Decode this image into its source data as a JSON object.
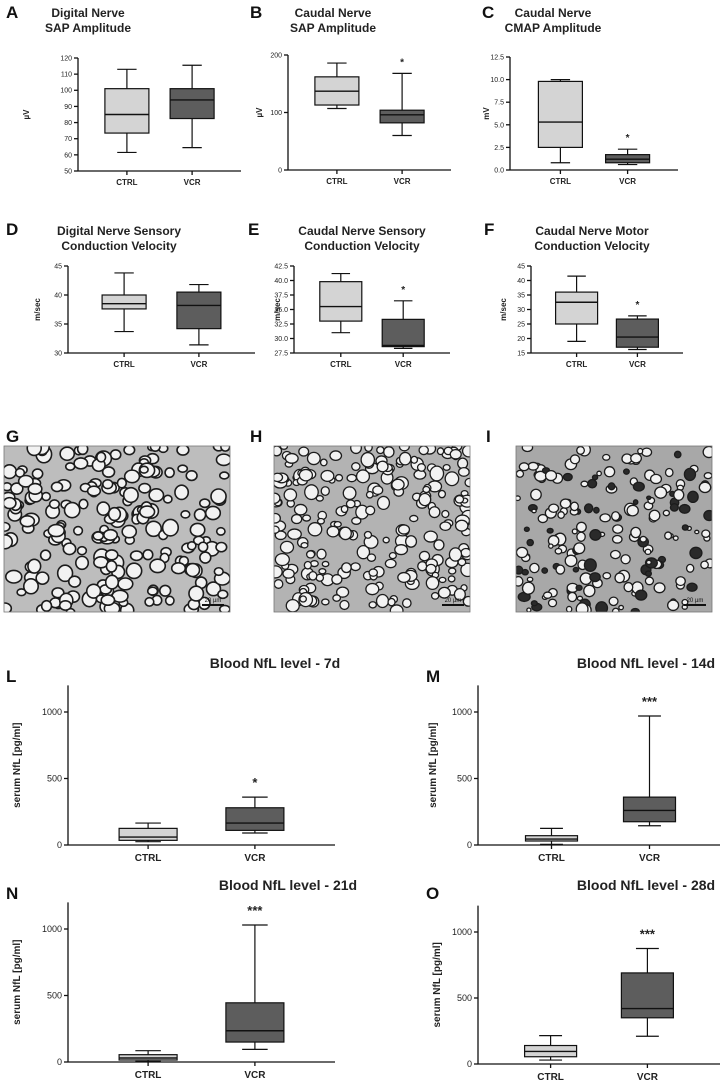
{
  "colors": {
    "ctrl": "#d4d4d4",
    "vcr": "#5d5d5d",
    "axis": "#111111"
  },
  "histology": [
    {
      "letter": "G",
      "scale_label": "20 µm",
      "style": "ctrl",
      "description_icon": "nerve-cross-section"
    },
    {
      "letter": "H",
      "scale_label": "20 µm",
      "style": "vcr-mild",
      "description_icon": "nerve-cross-section"
    },
    {
      "letter": "I",
      "scale_label": "20 µm",
      "style": "vcr-severe",
      "description_icon": "nerve-cross-section"
    }
  ],
  "chart_data": [
    {
      "letter": "A",
      "type": "box",
      "title": [
        "Digital Nerve",
        "SAP Amplitude"
      ],
      "ylabel": "µV",
      "ylim": [
        50,
        120
      ],
      "yticks": [
        50,
        60,
        70,
        80,
        90,
        100,
        110,
        120
      ],
      "categories": [
        "CTRL",
        "VCR"
      ],
      "significance": [
        "",
        ""
      ],
      "boxes": [
        {
          "min": 61.5,
          "q1": 73.5,
          "median": 85,
          "q3": 101,
          "max": 113
        },
        {
          "min": 64.5,
          "q1": 82.5,
          "median": 94,
          "q3": 101,
          "max": 115.5
        }
      ]
    },
    {
      "letter": "B",
      "type": "box",
      "title": [
        "Caudal Nerve",
        "SAP Amplitude"
      ],
      "ylabel": "µV",
      "ylim": [
        0,
        200
      ],
      "yticks": [
        0,
        100,
        200
      ],
      "categories": [
        "CTRL",
        "VCR"
      ],
      "significance": [
        "",
        "*"
      ],
      "boxes": [
        {
          "min": 107,
          "q1": 113,
          "median": 137,
          "q3": 162,
          "max": 186
        },
        {
          "min": 60,
          "q1": 82,
          "median": 96,
          "q3": 104,
          "max": 168
        }
      ]
    },
    {
      "letter": "C",
      "type": "box",
      "title": [
        "Caudal Nerve",
        "CMAP Amplitude"
      ],
      "ylabel": "mV",
      "ylim": [
        0,
        12.5
      ],
      "yticks": [
        "0.0",
        "2.5",
        "5.0",
        "7.5",
        "10.0",
        "12.5"
      ],
      "categories": [
        "CTRL",
        "VCR"
      ],
      "significance": [
        "",
        "*"
      ],
      "boxes": [
        {
          "min": 0.8,
          "q1": 2.5,
          "median": 5.3,
          "q3": 9.8,
          "max": 10
        },
        {
          "min": 0.6,
          "q1": 0.8,
          "median": 1.2,
          "q3": 1.7,
          "max": 2.3
        }
      ]
    },
    {
      "letter": "D",
      "type": "box",
      "title": [
        "Digital Nerve Sensory",
        "Conduction Velocity"
      ],
      "ylabel": "m/sec",
      "ylim": [
        30,
        45
      ],
      "yticks": [
        30,
        35,
        40,
        45
      ],
      "categories": [
        "CTRL",
        "VCR"
      ],
      "significance": [
        "",
        ""
      ],
      "boxes": [
        {
          "min": 33.7,
          "q1": 37.6,
          "median": 38.5,
          "q3": 40,
          "max": 43.8
        },
        {
          "min": 31.4,
          "q1": 34.2,
          "median": 38.2,
          "q3": 40.5,
          "max": 41.8
        }
      ]
    },
    {
      "letter": "E",
      "type": "box",
      "title": [
        "Caudal Nerve Sensory",
        "Conduction Velocity"
      ],
      "ylabel": "m/sec",
      "ylim": [
        27.5,
        42.5
      ],
      "yticks": [
        "27.5",
        "30.0",
        "32.5",
        "35.0",
        "37.5",
        "40.0",
        "42.5"
      ],
      "categories": [
        "CTRL",
        "VCR"
      ],
      "significance": [
        "",
        "*"
      ],
      "boxes": [
        {
          "min": 31,
          "q1": 33,
          "median": 35.5,
          "q3": 39.8,
          "max": 41.2
        },
        {
          "min": 28.3,
          "q1": 28.6,
          "median": 28.8,
          "q3": 33.3,
          "max": 36.5
        }
      ]
    },
    {
      "letter": "F",
      "type": "box",
      "title": [
        "Caudal Nerve Motor",
        "Conduction Velocity"
      ],
      "ylabel": "m/sec",
      "ylim": [
        15,
        45
      ],
      "yticks": [
        15,
        20,
        25,
        30,
        35,
        40,
        45
      ],
      "categories": [
        "CTRL",
        "VCR"
      ],
      "significance": [
        "",
        "*"
      ],
      "boxes": [
        {
          "min": 19,
          "q1": 25,
          "median": 32.5,
          "q3": 36,
          "max": 41.5
        },
        {
          "min": 16.2,
          "q1": 17,
          "median": 20.5,
          "q3": 26.7,
          "max": 27.8
        }
      ]
    },
    {
      "letter": "L",
      "type": "box",
      "title": [
        "Blood NfL level - 7d"
      ],
      "ylabel": "serum NfL [pg/ml]",
      "ylim": [
        0,
        1200
      ],
      "yticks": [
        0,
        500,
        1000
      ],
      "categories": [
        "CTRL",
        "VCR"
      ],
      "significance": [
        "",
        "*"
      ],
      "boxes": [
        {
          "min": 25,
          "q1": 35,
          "median": 60,
          "q3": 125,
          "max": 165
        },
        {
          "min": 90,
          "q1": 110,
          "median": 165,
          "q3": 280,
          "max": 360
        }
      ]
    },
    {
      "letter": "M",
      "type": "box",
      "title": [
        "Blood NfL level - 14d"
      ],
      "ylabel": "serum NfL [pg/ml]",
      "ylim": [
        0,
        1200
      ],
      "yticks": [
        0,
        500,
        1000
      ],
      "categories": [
        "CTRL",
        "VCR"
      ],
      "significance": [
        "",
        "***"
      ],
      "boxes": [
        {
          "min": 5,
          "q1": 30,
          "median": 45,
          "q3": 70,
          "max": 125
        },
        {
          "min": 145,
          "q1": 175,
          "median": 260,
          "q3": 360,
          "max": 970
        }
      ]
    },
    {
      "letter": "N",
      "type": "box",
      "title": [
        "Blood NfL level - 21d"
      ],
      "ylabel": "serum NfL [pg/ml]",
      "ylim": [
        0,
        1200
      ],
      "yticks": [
        0,
        500,
        1000
      ],
      "categories": [
        "CTRL",
        "VCR"
      ],
      "significance": [
        "",
        "***"
      ],
      "boxes": [
        {
          "min": 5,
          "q1": 15,
          "median": 30,
          "q3": 55,
          "max": 85
        },
        {
          "min": 95,
          "q1": 150,
          "median": 235,
          "q3": 445,
          "max": 1030
        }
      ]
    },
    {
      "letter": "O",
      "type": "box",
      "title": [
        "Blood NfL level - 28d"
      ],
      "ylabel": "serum NfL [pg/ml]",
      "ylim": [
        0,
        1200
      ],
      "yticks": [
        0,
        500,
        1000
      ],
      "categories": [
        "CTRL",
        "VCR"
      ],
      "significance": [
        "",
        "***"
      ],
      "boxes": [
        {
          "min": 30,
          "q1": 55,
          "median": 95,
          "q3": 140,
          "max": 215
        },
        {
          "min": 210,
          "q1": 350,
          "median": 420,
          "q3": 690,
          "max": 875
        }
      ]
    }
  ]
}
